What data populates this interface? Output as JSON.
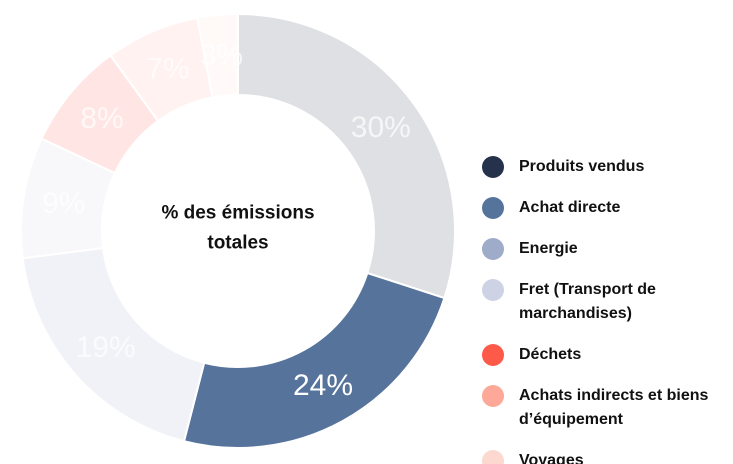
{
  "chart_data": {
    "type": "donut",
    "title_lines": [
      "% des émissions",
      "totales"
    ],
    "highlighted": 1,
    "series": [
      {
        "name": "Produits vendus",
        "color": "#26324b",
        "values": [
          30
        ],
        "value_labels": [
          "30%"
        ]
      },
      {
        "name": "Achat directe",
        "color": "#56739c",
        "values": [
          24
        ],
        "value_labels": [
          "24%"
        ]
      },
      {
        "name": "Energie",
        "color": "#9eabc9",
        "values": [
          19
        ],
        "value_labels": [
          "19%"
        ]
      },
      {
        "name": "Fret (Transport de marchandises)",
        "color": "#cdd3e4",
        "values": [
          9
        ],
        "value_labels": [
          "9%"
        ]
      },
      {
        "name": "Déchets",
        "color": "#fe5a4a",
        "values": [
          8
        ],
        "value_labels": [
          "8%"
        ]
      },
      {
        "name": "Achats indirects et biens d’équipement",
        "color": "#fda898",
        "values": [
          7
        ],
        "value_labels": [
          "7%"
        ]
      },
      {
        "name": "Voyages",
        "color": "#fdd8cf",
        "values": [
          3
        ],
        "value_labels": [
          "3%"
        ]
      }
    ]
  }
}
